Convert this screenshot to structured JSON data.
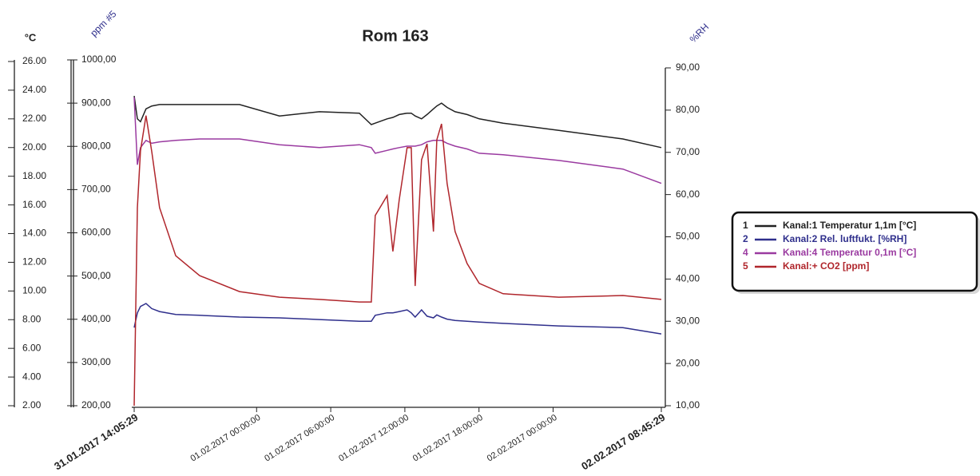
{
  "chart_data": {
    "type": "line",
    "title": "Rom 163",
    "y_label": "°C",
    "y3_label": "ppm #5",
    "y2_label": "%RH",
    "x": [
      "31.01.2017 14:05:29",
      "31.01.2017 14:21:00",
      "31.01.2017 14:36:00",
      "31.01.2017 15:03:00",
      "31.01.2017 15:31:00",
      "31.01.2017 16:09:00",
      "31.01.2017 17:27:00",
      "31.01.2017 19:23:00",
      "31.01.2017 22:37:00",
      "01.02.2017 01:51:00",
      "01.02.2017 05:05:00",
      "01.02.2017 08:19:00",
      "01.02.2017 09:17:00",
      "01.02.2017 09:36:00",
      "01.02.2017 10:34:00",
      "01.02.2017 11:02:00",
      "01.02.2017 11:33:00",
      "01.02.2017 12:11:00",
      "01.02.2017 12:31:00",
      "01.02.2017 12:50:00",
      "01.02.2017 13:21:00",
      "01.02.2017 13:48:00",
      "01.02.2017 14:19:00",
      "01.02.2017 14:35:00",
      "01.02.2017 14:58:00",
      "01.02.2017 15:25:00",
      "01.02.2017 16:04:00",
      "01.02.2017 17:02:00",
      "01.02.2017 18:01:00",
      "01.02.2017 19:57:00",
      "02.02.2017 00:28:00",
      "02.02.2017 05:39:00",
      "02.02.2017 08:45:29"
    ],
    "xlim": [
      "31.01.2017 14:05:29",
      "02.02.2017 08:45:29"
    ],
    "xticks": [
      "31.01.2017 14:05:29",
      "01.02.2017 00:00:00",
      "01.02.2017 06:00:00",
      "01.02.2017 12:00:00",
      "01.02.2017 18:00:00",
      "02.02.2017 00:00:00",
      "02.02.2017 08:45:29"
    ],
    "ylim": [
      2,
      26
    ],
    "yticks": [
      {
        "value": 2,
        "label": "2.00"
      },
      {
        "value": 4,
        "label": "4.00"
      },
      {
        "value": 6,
        "label": "6.00"
      },
      {
        "value": 8,
        "label": "8.00"
      },
      {
        "value": 10,
        "label": "10.00"
      },
      {
        "value": 12,
        "label": "12.00"
      },
      {
        "value": 14,
        "label": "14.00"
      },
      {
        "value": 16,
        "label": "16.00"
      },
      {
        "value": 18,
        "label": "18.00"
      },
      {
        "value": 20,
        "label": "20.00"
      },
      {
        "value": 22,
        "label": "22.00"
      },
      {
        "value": 24,
        "label": "24.00"
      },
      {
        "value": 26,
        "label": "26.00"
      }
    ],
    "y3lim": [
      200,
      1000
    ],
    "y3ticks": [
      {
        "value": 200,
        "label": "200,00"
      },
      {
        "value": 300,
        "label": "300,00"
      },
      {
        "value": 400,
        "label": "400,00"
      },
      {
        "value": 500,
        "label": "500,00"
      },
      {
        "value": 600,
        "label": "600,00"
      },
      {
        "value": 700,
        "label": "700,00"
      },
      {
        "value": 800,
        "label": "800,00"
      },
      {
        "value": 900,
        "label": "900,00"
      },
      {
        "value": 1000,
        "label": "1000,00"
      }
    ],
    "y2lim": [
      10,
      90
    ],
    "y2ticks": [
      {
        "value": 10,
        "label": "10,00"
      },
      {
        "value": 20,
        "label": "20,00"
      },
      {
        "value": 30,
        "label": "30,00"
      },
      {
        "value": 40,
        "label": "40,00"
      },
      {
        "value": 50,
        "label": "50,00"
      },
      {
        "value": 60,
        "label": "60,00"
      },
      {
        "value": 70,
        "label": "70,00"
      },
      {
        "value": 80,
        "label": "80,00"
      },
      {
        "value": 90,
        "label": "90,00"
      }
    ],
    "series": [
      {
        "channel": "1",
        "name": "Kanal:1 Temperatur 1,1m [°C]",
        "color": "#222222",
        "axis": "y",
        "values": [
          23.6,
          22.0,
          21.8,
          22.7,
          22.9,
          23.0,
          23.0,
          23.0,
          23.0,
          22.2,
          22.5,
          22.4,
          21.6,
          21.7,
          22.0,
          22.1,
          22.3,
          22.4,
          22.4,
          22.2,
          22.0,
          22.3,
          22.7,
          22.9,
          23.1,
          22.8,
          22.5,
          22.3,
          22.0,
          21.7,
          21.2,
          20.6,
          20.0
        ]
      },
      {
        "channel": "2",
        "name": "Kanal:2 Rel. luftfukt. [%RH]",
        "color": "#2f2f8c",
        "axis": "y2",
        "values": [
          28.5,
          32.0,
          33.5,
          34.2,
          33.0,
          32.3,
          31.6,
          31.4,
          31.0,
          30.8,
          30.4,
          30.0,
          30.0,
          31.4,
          32.0,
          32.0,
          32.3,
          32.7,
          32.0,
          31.0,
          32.7,
          31.2,
          30.8,
          31.5,
          31.0,
          30.5,
          30.2,
          30.0,
          29.8,
          29.5,
          28.9,
          28.5,
          27.0
        ]
      },
      {
        "channel": "4",
        "name": "Kanal:4 Temperatur 0,1m [°C]",
        "color": "#9a3aa0",
        "axis": "y",
        "values": [
          23.5,
          18.8,
          20.0,
          20.5,
          20.3,
          20.4,
          20.5,
          20.6,
          20.6,
          20.2,
          20.0,
          20.2,
          20.0,
          19.6,
          19.8,
          19.9,
          20.0,
          20.1,
          20.1,
          20.1,
          20.2,
          20.4,
          20.5,
          20.5,
          20.5,
          20.3,
          20.1,
          19.9,
          19.6,
          19.5,
          19.1,
          18.5,
          17.5
        ]
      },
      {
        "channel": "5",
        "name": "Kanal:+ CO2 [ppm]",
        "color": "#b0262c",
        "axis": "y3",
        "values": [
          200,
          658,
          790,
          871,
          788,
          658,
          547,
          501,
          464,
          451,
          446,
          440,
          440,
          640,
          686,
          557,
          677,
          797,
          797,
          477,
          769,
          806,
          603,
          815,
          852,
          714,
          603,
          529,
          483,
          459,
          451,
          455,
          446
        ]
      }
    ]
  }
}
